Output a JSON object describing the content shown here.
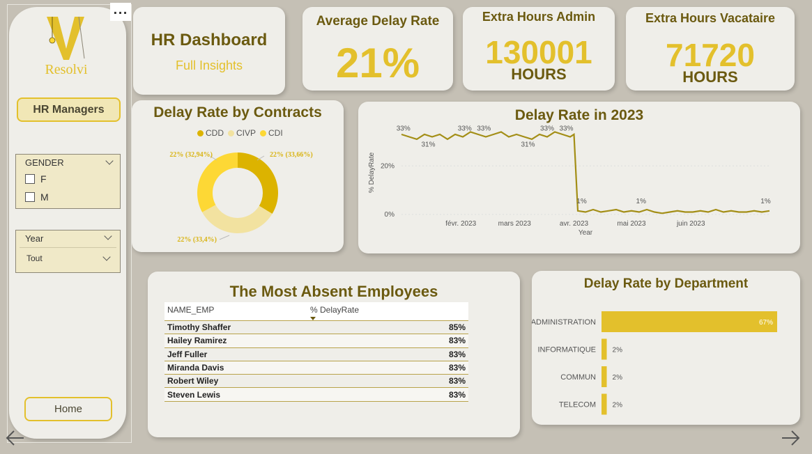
{
  "sidebar": {
    "logo_text": "Resolvi",
    "role_button": "HR Managers",
    "gender_filter": {
      "title": "GENDER",
      "options": [
        "F",
        "M"
      ]
    },
    "year_filter": {
      "title": "Year",
      "value": "Tout"
    },
    "home_button": "Home",
    "more_options": "..."
  },
  "header": {
    "title": "HR Dashboard",
    "subtitle": "Full Insights"
  },
  "kpis": {
    "delay": {
      "title": "Average Delay Rate",
      "value": "21%"
    },
    "admin": {
      "title": "Extra Hours Admin",
      "value": "130001",
      "unit": "HOURS"
    },
    "vacataire": {
      "title": "Extra Hours Vacataire",
      "value": "71720",
      "unit": "HOURS"
    }
  },
  "colors": {
    "accent": "#e3c02c",
    "dark": "#6b5a10",
    "background": "#c5c0b5",
    "panel": "#efeee9"
  },
  "table": {
    "title": "The Most Absent Employees",
    "columns": [
      "NAME_EMP",
      "% DelayRate"
    ],
    "rows": [
      {
        "name": "Timothy Shaffer",
        "rate": "85%"
      },
      {
        "name": "Hailey Ramirez",
        "rate": "83%"
      },
      {
        "name": "Jeff Fuller",
        "rate": "83%"
      },
      {
        "name": "Miranda Davis",
        "rate": "83%"
      },
      {
        "name": "Robert Wiley",
        "rate": "83%"
      },
      {
        "name": "Steven Lewis",
        "rate": "83%"
      }
    ]
  },
  "chart_data": [
    {
      "type": "pie",
      "title": "Delay Rate by Contracts",
      "legend_position": "top",
      "categories": [
        "CDD",
        "CIVP",
        "CDI"
      ],
      "values": [
        33.66,
        33.4,
        32.94
      ],
      "labels": [
        "22% (33,66%)",
        "22% (33,4%)",
        "22% (32,94%)"
      ],
      "colors": [
        "#dcb300",
        "#f2e2a0",
        "#fdd835"
      ]
    },
    {
      "type": "line",
      "title": "Delay Rate in 2023",
      "xlabel": "Year",
      "ylabel": "% DelayRate",
      "ylim": [
        0,
        35
      ],
      "yticks": [
        "0%",
        "20%"
      ],
      "xticks": [
        "févr. 2023",
        "mars 2023",
        "avr. 2023",
        "mai 2023",
        "juin 2023"
      ],
      "grid": true,
      "series": [
        {
          "x": [
            "2023-01-01",
            "2023-01-05",
            "2023-01-09",
            "2023-01-13",
            "2023-01-17",
            "2023-01-21",
            "2023-01-25",
            "2023-01-29",
            "2023-02-02",
            "2023-02-06",
            "2023-02-10",
            "2023-02-14",
            "2023-02-18",
            "2023-02-22",
            "2023-02-26",
            "2023-03-02",
            "2023-03-06",
            "2023-03-10",
            "2023-03-14",
            "2023-03-18",
            "2023-03-22",
            "2023-03-26",
            "2023-03-30",
            "2023-04-01",
            "2023-04-03",
            "2023-04-07",
            "2023-04-11",
            "2023-04-15",
            "2023-04-19",
            "2023-04-23",
            "2023-04-27",
            "2023-05-01",
            "2023-05-05",
            "2023-05-09",
            "2023-05-13",
            "2023-05-17",
            "2023-05-21",
            "2023-05-25",
            "2023-05-29",
            "2023-06-02",
            "2023-06-06",
            "2023-06-10",
            "2023-06-14",
            "2023-06-18",
            "2023-06-22",
            "2023-06-26",
            "2023-06-30",
            "2023-07-04",
            "2023-07-08",
            "2023-07-12"
          ],
          "values": [
            33,
            32,
            31,
            33,
            32,
            33,
            31,
            33,
            32,
            34,
            33,
            32,
            33,
            34,
            32,
            33,
            32,
            31,
            33,
            32,
            34,
            33,
            32,
            33,
            1.5,
            1,
            2,
            1,
            1.5,
            2,
            1,
            1.5,
            1,
            2,
            1,
            0.5,
            1,
            1.5,
            1,
            1,
            1.5,
            1,
            2,
            1,
            1.5,
            1,
            1,
            1.5,
            1,
            1.5
          ]
        }
      ],
      "point_labels": [
        {
          "x": "2023-01-02",
          "text": "33%"
        },
        {
          "x": "2023-01-15",
          "text": "31%"
        },
        {
          "x": "2023-02-03",
          "text": "33%"
        },
        {
          "x": "2023-02-13",
          "text": "33%"
        },
        {
          "x": "2023-03-08",
          "text": "31%"
        },
        {
          "x": "2023-03-18",
          "text": "33%"
        },
        {
          "x": "2023-03-28",
          "text": "33%"
        },
        {
          "x": "2023-04-05",
          "text": "1%"
        },
        {
          "x": "2023-05-06",
          "text": "1%"
        },
        {
          "x": "2023-07-10",
          "text": "1%"
        }
      ]
    },
    {
      "type": "bar",
      "orientation": "horizontal",
      "title": "Delay Rate by Department",
      "categories": [
        "ADMINISTRATION",
        "INFORMATIQUE",
        "COMMUN",
        "TELECOM"
      ],
      "values": [
        67,
        2,
        2,
        2
      ],
      "labels": [
        "67%",
        "2%",
        "2%",
        "2%"
      ],
      "xlim": [
        0,
        67
      ],
      "color": "#e3c02c"
    }
  ]
}
